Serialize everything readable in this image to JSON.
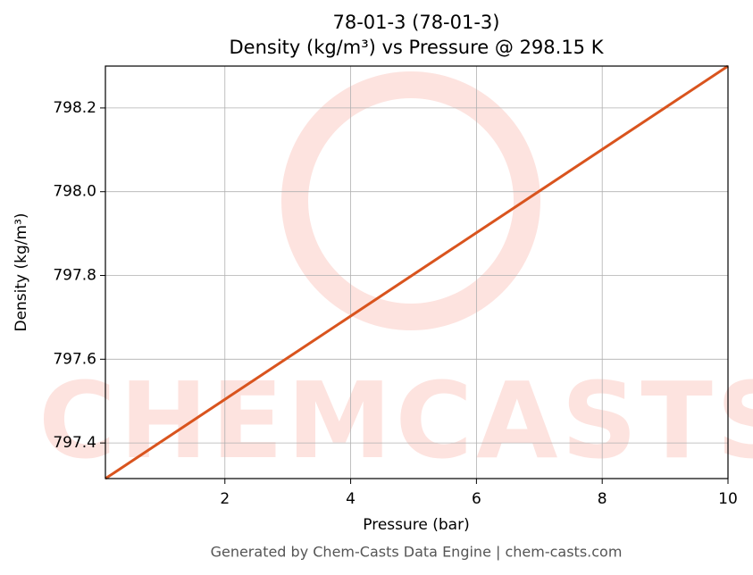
{
  "chart_data": {
    "type": "line",
    "title": "78-01-3 (78-01-3)",
    "subtitle": "Density (kg/m³) vs Pressure @ 298.15 K",
    "xlabel": "Pressure (bar)",
    "ylabel": "Density (kg/m³)",
    "x": [
      0.1,
      10
    ],
    "series": [
      {
        "name": "Density",
        "color": "#d9541e",
        "values": [
          797.315,
          798.3
        ]
      }
    ],
    "xlim": [
      0.1,
      10
    ],
    "xticks": [
      2,
      4,
      6,
      8,
      10
    ],
    "ylim": [
      797.315,
      798.3
    ],
    "yticks": [
      797.4,
      797.6,
      797.8,
      {
        "value": 798,
        "label": "798.0"
      },
      798.2
    ],
    "grid": true,
    "watermark": "CHEMCASTS",
    "footer": "Generated by Chem-Casts Data Engine | chem-casts.com"
  }
}
